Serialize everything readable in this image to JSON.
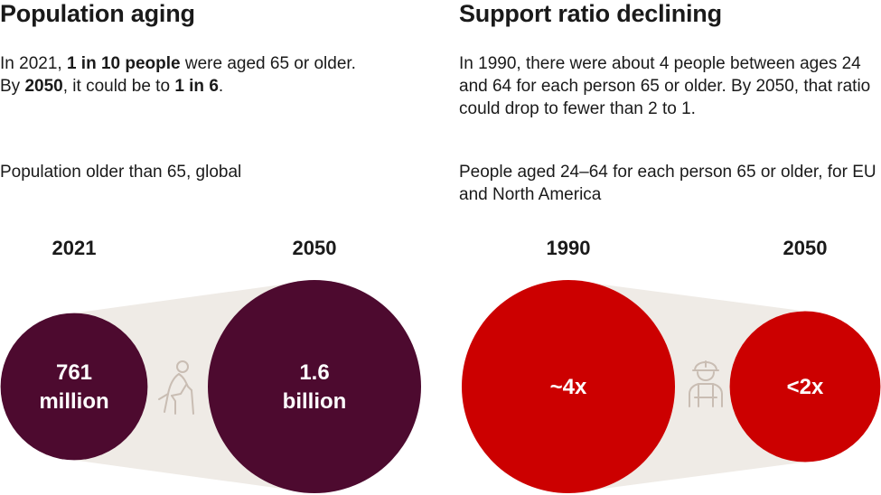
{
  "left": {
    "title": "Population aging",
    "intro": {
      "line1_pre": "In 2021, ",
      "line1_bold": "1 in 10 people",
      "line1_post": " were aged 65 or older.",
      "line2_pre": "By ",
      "line2_bold1": "2050",
      "line2_mid": ", it could be to ",
      "line2_bold2": "1 in 6",
      "line2_post": "."
    },
    "subtitle": "Population older than 65, global",
    "icon": "elderly-person-with-cane-icon"
  },
  "right": {
    "title": "Support ratio declining",
    "intro": "In 1990, there were about 4 people between ages 24 and 64 for each person 65 or older. By 2050, that ratio could drop to fewer than 2 to 1.",
    "subtitle": "People aged 24–64 for each person 65 or older, for EU and North America",
    "icon": "worker-hard-hat-icon"
  },
  "colors": {
    "aging_circle": "#4d0a2f",
    "ratio_circle": "#cc0000",
    "connector": "#efebe6",
    "icon": "#c9bdb3"
  },
  "chart_data": [
    {
      "type": "bubble",
      "title": "Population older than 65, global",
      "categories": [
        "2021",
        "2050"
      ],
      "values": [
        761,
        1600
      ],
      "units": "million",
      "labels": [
        {
          "line1": "761",
          "line2": "million"
        },
        {
          "line1": "1.6",
          "line2": "billion"
        }
      ]
    },
    {
      "type": "bubble",
      "title": "People aged 24–64 for each person 65 or older, for EU and North America",
      "categories": [
        "1990",
        "2050"
      ],
      "values": [
        4,
        2
      ],
      "labels": [
        "~4x",
        "<2x"
      ]
    }
  ]
}
